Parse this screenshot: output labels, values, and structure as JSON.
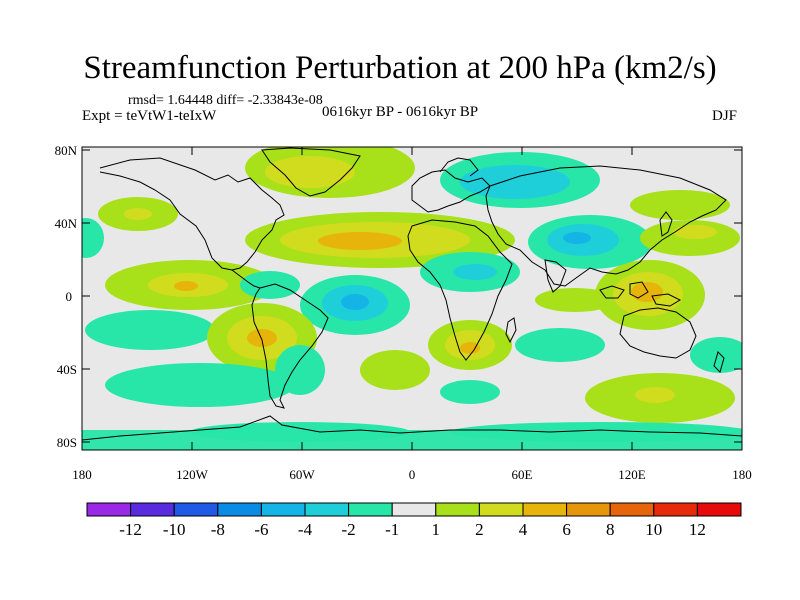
{
  "title": "Streamfunction Perturbation at 200 hPa (km2/s)",
  "stats": "rmsd= 1.64448 diff= -2.33843e-08",
  "experiment": "Expt = teVtW1-teIxW",
  "period": "0616kyr BP - 0616kyr BP",
  "season": "DJF",
  "map": {
    "lat_labels": [
      "80N",
      "40N",
      "0",
      "40S",
      "80S"
    ],
    "lon_labels": [
      "180",
      "120W",
      "60W",
      "0",
      "60E",
      "120E",
      "180"
    ],
    "background_color": "#e8e8e8"
  },
  "colorbar": {
    "labels": [
      "-12",
      "-10",
      "-8",
      "-6",
      "-4",
      "-2",
      "-1",
      "1",
      "2",
      "4",
      "6",
      "8",
      "10",
      "12"
    ],
    "colors": [
      "#9a28e6",
      "#5a2ae0",
      "#1e5ae6",
      "#0a8ce6",
      "#14b4e6",
      "#1ecfda",
      "#28e6a8",
      "#e8e8e8",
      "#a8e01a",
      "#d2dc1e",
      "#e6b40a",
      "#e6960a",
      "#e6640a",
      "#e62a0a",
      "#e60a0a"
    ]
  }
}
